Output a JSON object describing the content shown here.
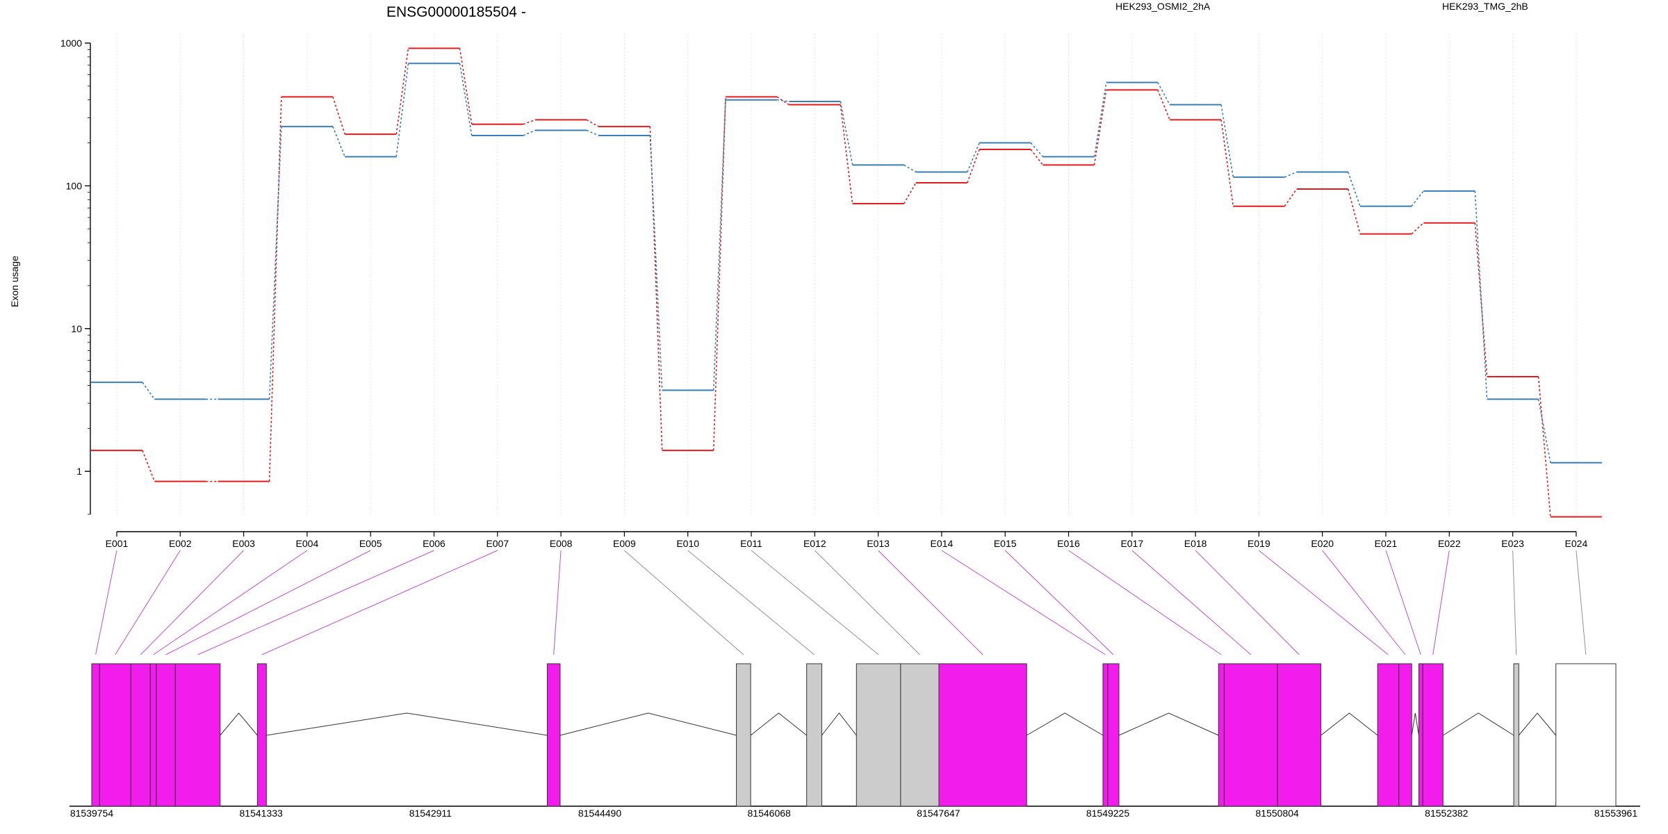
{
  "chart_data": {
    "type": "line",
    "title": "ENSG00000185504 -",
    "ylabel": "Exon usage",
    "xlabel": "",
    "y_scale": "log",
    "ylim": [
      0.5,
      1000
    ],
    "y_ticks": [
      "1",
      "10",
      "100",
      "1000"
    ],
    "y_tick_values": [
      1,
      10,
      100,
      1000
    ],
    "grid": "vertical dotted",
    "legend_placement": "top",
    "categories": [
      "E001",
      "E002",
      "E003",
      "E004",
      "E005",
      "E006",
      "E007",
      "E008",
      "E009",
      "E010",
      "E011",
      "E012",
      "E013",
      "E014",
      "E015",
      "E016",
      "E017",
      "E018",
      "E019",
      "E020",
      "E021",
      "E022",
      "E023",
      "E024"
    ],
    "series": [
      {
        "name": "HEK293_OSMI2_2hA",
        "color": "#e41a1c",
        "values": [
          1.4,
          0.85,
          0.85,
          420,
          230,
          920,
          270,
          290,
          260,
          1.4,
          420,
          370,
          75,
          105,
          180,
          140,
          470,
          290,
          72,
          95,
          46,
          55,
          4.6,
          0.48
        ]
      },
      {
        "name": "HEK293_TMG_2hB",
        "color": "#377eb8",
        "values": [
          4.2,
          3.2,
          3.2,
          260,
          160,
          720,
          225,
          245,
          225,
          3.7,
          400,
          390,
          140,
          125,
          200,
          160,
          530,
          370,
          115,
          125,
          72,
          92,
          3.2,
          1.15
        ]
      }
    ],
    "gene_model": {
      "coordinate_ticks": [
        "81539754",
        "81541333",
        "81542911",
        "81544490",
        "81546068",
        "81547647",
        "81549225",
        "81550804",
        "81552382",
        "81553961"
      ],
      "coord_start": 81539754,
      "coord_end": 81553961,
      "exon_blocks": [
        {
          "exon": "E001",
          "start": 81539754,
          "end": 81539827,
          "kind": "highlight"
        },
        {
          "exon": "E002",
          "start": 81539827,
          "end": 81540119,
          "kind": "highlight"
        },
        {
          "exon": "E003",
          "start": 81540119,
          "end": 81540300,
          "kind": "highlight"
        },
        {
          "exon": "E004",
          "start": 81540300,
          "end": 81540356,
          "kind": "highlight"
        },
        {
          "exon": "E005",
          "start": 81540356,
          "end": 81540533,
          "kind": "highlight"
        },
        {
          "exon": "E006",
          "start": 81540533,
          "end": 81540951,
          "kind": "highlight"
        },
        {
          "exon": "E007",
          "start": 81541298,
          "end": 81541382,
          "kind": "highlight"
        },
        {
          "exon": "E008",
          "start": 81544000,
          "end": 81544120,
          "kind": "highlight"
        },
        {
          "exon": "E009",
          "start": 81545763,
          "end": 81545896,
          "kind": "other"
        },
        {
          "exon": "E010",
          "start": 81546418,
          "end": 81546559,
          "kind": "other"
        },
        {
          "exon": "E011",
          "start": 81546882,
          "end": 81547294,
          "kind": "other"
        },
        {
          "exon": "E012",
          "start": 81547294,
          "end": 81547651,
          "kind": "other"
        },
        {
          "exon": "E013",
          "start": 81547651,
          "end": 81548469,
          "kind": "highlight"
        },
        {
          "exon": "E014",
          "start": 81549180,
          "end": 81549225,
          "kind": "highlight"
        },
        {
          "exon": "E015",
          "start": 81549225,
          "end": 81549329,
          "kind": "highlight"
        },
        {
          "exon": "E016",
          "start": 81550257,
          "end": 81550310,
          "kind": "highlight"
        },
        {
          "exon": "E017",
          "start": 81550310,
          "end": 81550807,
          "kind": "highlight"
        },
        {
          "exon": "E018",
          "start": 81550807,
          "end": 81551212,
          "kind": "highlight"
        },
        {
          "exon": "E019",
          "start": 81551740,
          "end": 81551938,
          "kind": "highlight"
        },
        {
          "exon": "E020",
          "start": 81551938,
          "end": 81552058,
          "kind": "highlight"
        },
        {
          "exon": "E021",
          "start": 81552124,
          "end": 81552161,
          "kind": "highlight"
        },
        {
          "exon": "E022",
          "start": 81552161,
          "end": 81552350,
          "kind": "highlight"
        },
        {
          "exon": "E023",
          "start": 81553009,
          "end": 81553056,
          "kind": "other"
        },
        {
          "exon": "E024",
          "start": 81553402,
          "end": 81553961,
          "kind": "none"
        }
      ],
      "colors": {
        "highlight": "#f21cec",
        "other": "#cccccc",
        "none": "#ffffff"
      }
    }
  }
}
